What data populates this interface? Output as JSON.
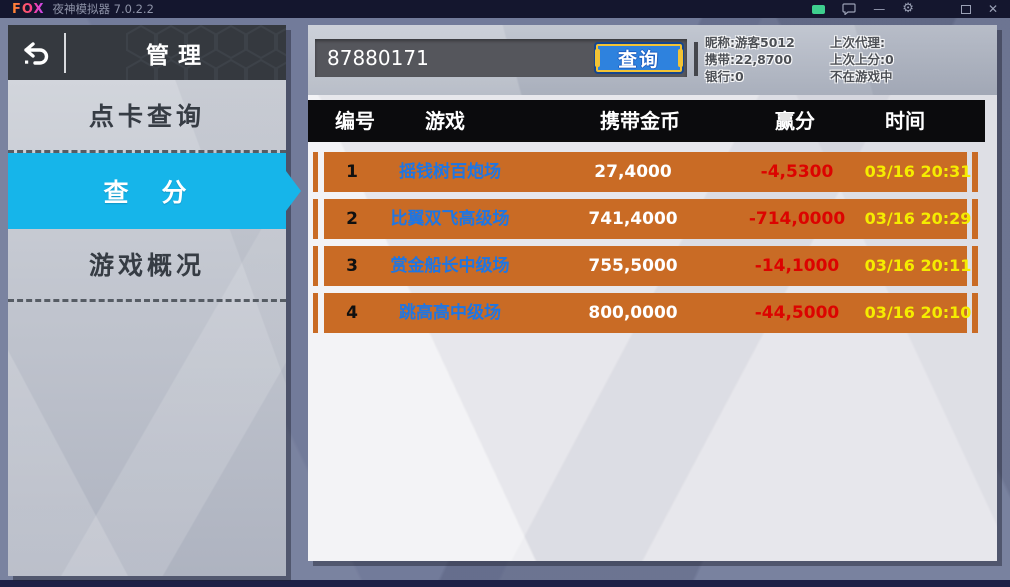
{
  "window": {
    "logo_text": "FOX",
    "title": "夜神模拟器 7.0.2.2",
    "controls": {
      "minimize": "—",
      "gear": "⚙",
      "close": "✕"
    }
  },
  "sidebar": {
    "title": "管理",
    "items": [
      {
        "label": "点卡查询",
        "selected": false
      },
      {
        "label": "查　分",
        "selected": true
      },
      {
        "label": "游戏概况",
        "selected": false
      }
    ]
  },
  "main": {
    "search": {
      "value": "87880171",
      "button_label": "查询"
    },
    "player_info": {
      "col1": [
        "昵称:游客5012",
        "携带:22,8700",
        "银行:0"
      ],
      "col2": [
        "上次代理:",
        "上次上分:0",
        "不在游戏中"
      ]
    },
    "table": {
      "headers": [
        "编号",
        "游戏",
        "携带金币",
        "赢分",
        "时间"
      ],
      "rows": [
        {
          "no": "1",
          "game": "摇钱树百炮场",
          "gold": "27,4000",
          "win": "-4,5300",
          "time": "03/16 20:31"
        },
        {
          "no": "2",
          "game": "比翼双飞高级场",
          "gold": "741,4000",
          "win": "-714,0000",
          "time": "03/16 20:29"
        },
        {
          "no": "3",
          "game": "赏金船长中级场",
          "gold": "755,5000",
          "win": "-14,1000",
          "time": "03/16 20:11"
        },
        {
          "no": "4",
          "game": "跳高高中级场",
          "gold": "800,0000",
          "win": "-44,5000",
          "time": "03/16 20:10"
        }
      ]
    }
  },
  "colors": {
    "accent_cyan": "#16b5ea",
    "row_orange": "#c96b25",
    "game_blue": "#1e76e4",
    "win_red": "#dc0300",
    "time_yellow": "#f5ec00",
    "button_blue": "#2e82de",
    "button_gold": "#f2c335",
    "badge_green": "#3ecf8e"
  }
}
